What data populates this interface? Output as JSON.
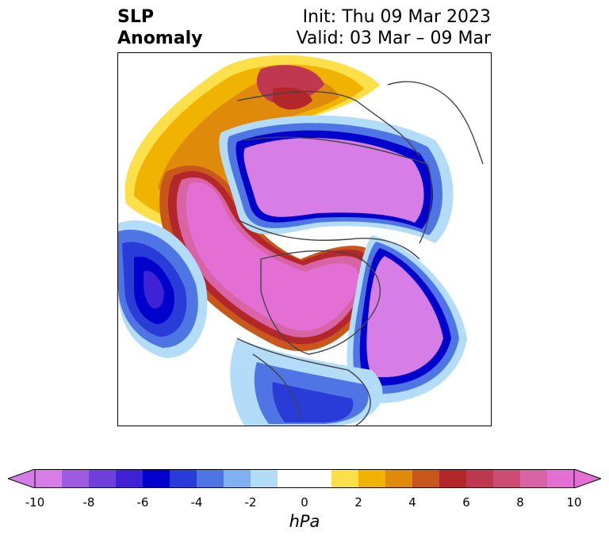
{
  "title": {
    "variable_line1": "SLP",
    "variable_line2": "Anomaly",
    "init": "Init: Thu 09 Mar 2023",
    "valid": "Valid: 03 Mar – 09 Mar"
  },
  "colorbar": {
    "unit": "hPa",
    "ticks": [
      "-10",
      "-8",
      "-6",
      "-4",
      "-2",
      "0",
      "2",
      "4",
      "6",
      "8",
      "10"
    ],
    "colors": [
      "#d77ee6",
      "#a05ce0",
      "#6f3fd9",
      "#3f22d6",
      "#0000cc",
      "#2a3cd8",
      "#4f74e4",
      "#7fb0ef",
      "#b3dcf8",
      "#ffffff",
      "#ffffff",
      "#fbe04a",
      "#f0b400",
      "#e08a0c",
      "#c9561a",
      "#b3262a",
      "#c0384f",
      "#cc4c73",
      "#d864a6",
      "#e46fd4"
    ],
    "under_color": "#d77ee6",
    "over_color": "#e46fd4"
  }
}
